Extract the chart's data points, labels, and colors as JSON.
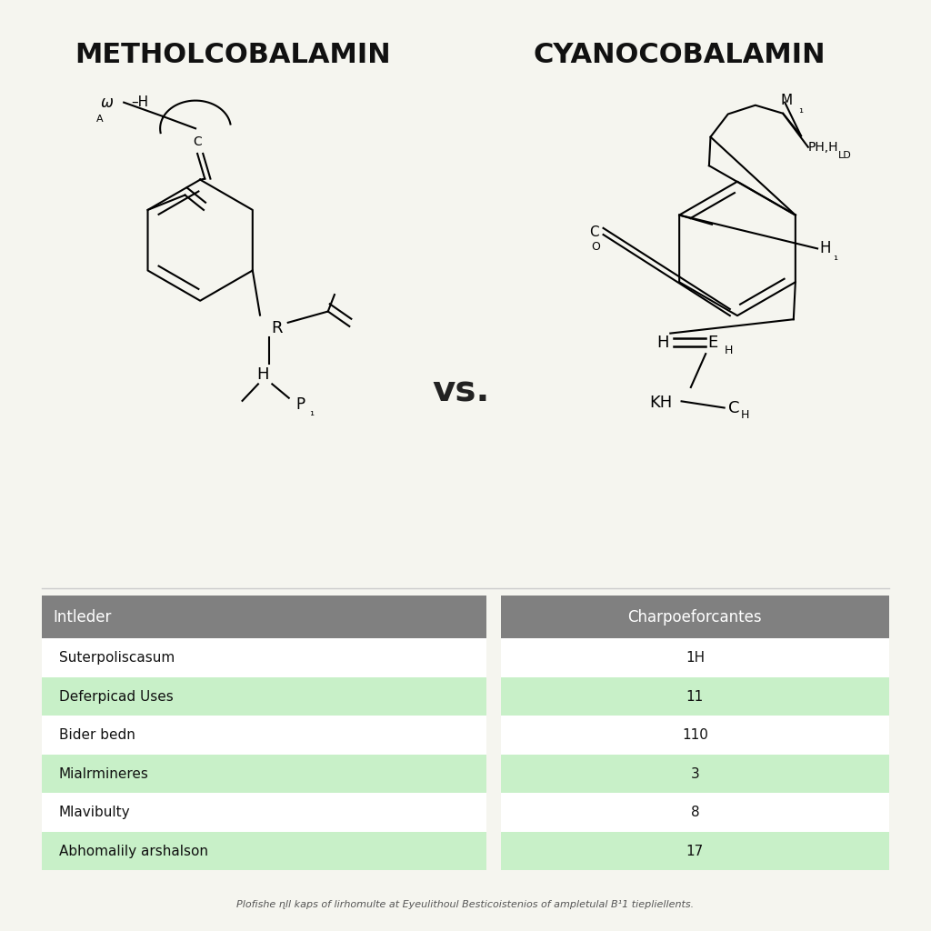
{
  "title_left": "METHOLCOBALAMIN",
  "title_right": "CYANOCOBALAMIN",
  "vs_text": "vs.",
  "background_color": "#f5f5ef",
  "title_color": "#111111",
  "table_header_bg": "#808080",
  "table_header_color": "#ffffff",
  "table_row_bg_alt": "#c8f0c8",
  "table_row_bg_white": "#ffffff",
  "table_col1": "Intleder",
  "table_col2": "Charpoeforcantes",
  "table_rows": [
    [
      "Suterpoliscasum",
      "1H",
      false
    ],
    [
      "Deferpicad Uses",
      "11",
      true
    ],
    [
      "Bider bedn",
      "110",
      false
    ],
    [
      "Mialrmineres",
      "3",
      true
    ],
    [
      "Mlavibulty",
      "8",
      false
    ],
    [
      "Abhomalily arshalson",
      "17",
      true
    ]
  ],
  "footer_text": "Plofishe ɳll kaps of lirhomulte at Eyeulithoul Besticoistenios of ampletulal B¹1 tiepliellents."
}
